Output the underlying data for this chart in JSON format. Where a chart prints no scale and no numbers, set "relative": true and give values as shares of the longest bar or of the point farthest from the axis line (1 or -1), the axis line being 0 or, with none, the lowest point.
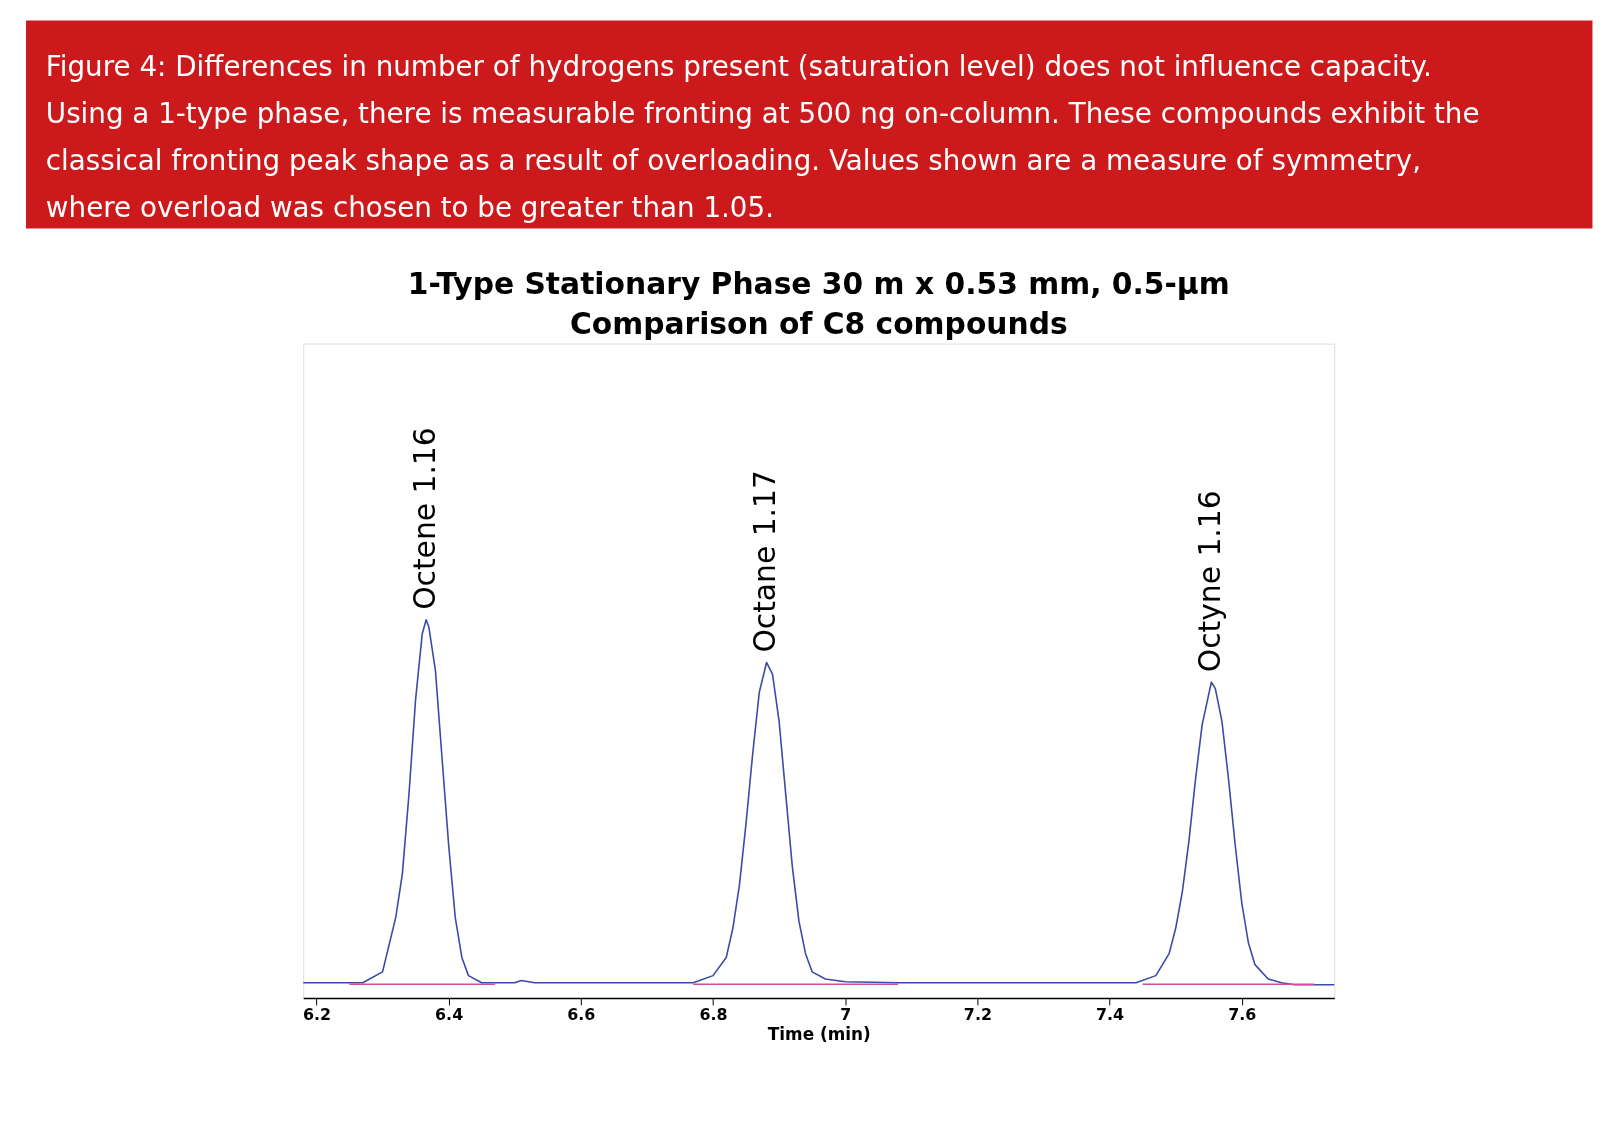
{
  "chart_data": {
    "type": "line",
    "title": "1-Type Stationary Phase 30 m x 0.53 mm, 0.5-µm",
    "subtitle": "Comparison of C8 compounds",
    "xlabel": "Time (min)",
    "relative": true,
    "xlim": [
      6.18,
      7.74
    ],
    "xticks": [
      6.2,
      6.4,
      6.6,
      6.8,
      7,
      7.2,
      7.4,
      7.6
    ],
    "grid": false,
    "marker": "none",
    "line_style": "solid",
    "series": [
      {
        "color": "#3a4aa8",
        "x": [
          6.18,
          6.27,
          6.3,
          6.32,
          6.33,
          6.34,
          6.35,
          6.36,
          6.366,
          6.37,
          6.38,
          6.39,
          6.4,
          6.41,
          6.42,
          6.43,
          6.45,
          6.5,
          6.51,
          6.53,
          6.77,
          6.8,
          6.82,
          6.83,
          6.84,
          6.85,
          6.86,
          6.87,
          6.881,
          6.89,
          6.9,
          6.91,
          6.92,
          6.93,
          6.94,
          6.95,
          6.97,
          7.0,
          7.08,
          7.44,
          7.47,
          7.49,
          7.5,
          7.51,
          7.52,
          7.53,
          7.54,
          7.554,
          7.56,
          7.57,
          7.58,
          7.59,
          7.6,
          7.61,
          7.62,
          7.64,
          7.66,
          7.68,
          7.74
        ],
        "values": [
          0.04,
          0.04,
          0.069,
          0.213,
          0.328,
          0.539,
          0.789,
          0.962,
          1,
          0.981,
          0.866,
          0.635,
          0.405,
          0.213,
          0.107,
          0.059,
          0.04,
          0.04,
          0.046,
          0.04,
          0.04,
          0.059,
          0.107,
          0.184,
          0.299,
          0.462,
          0.645,
          0.808,
          0.887,
          0.856,
          0.731,
          0.539,
          0.347,
          0.203,
          0.117,
          0.069,
          0.05,
          0.043,
          0.04,
          0.04,
          0.059,
          0.117,
          0.184,
          0.28,
          0.414,
          0.578,
          0.722,
          0.835,
          0.818,
          0.731,
          0.578,
          0.405,
          0.251,
          0.146,
          0.088,
          0.05,
          0.04,
          0.035,
          0.035
        ]
      },
      {
        "color": "#d0509a",
        "x": [
          6.25,
          6.47,
          6.48,
          6.77,
          7.08,
          7.09,
          7.45,
          7.71
        ],
        "values": [
          0.036,
          0.036,
          null,
          0.036,
          0.036,
          null,
          0.036,
          0.036
        ]
      }
    ],
    "annotations": [
      "Figure 4: Differences in number of hydrogens present (saturation level) does not influence capacity. Using a 1-type phase, there is measurable fronting at 500 ng on-column. These compounds exhibit the classical fronting peak shape as a result of overloading. Values shown are a measure of symmetry, where overload was chosen to be greater than 1.05.",
      {
        "text": "Octene 1.16",
        "x": 6.366,
        "y": 1
      },
      {
        "text": "Octane 1.17",
        "x": 6.881,
        "y": 0.887
      },
      {
        "text": "Octyne 1.16",
        "x": 7.554,
        "y": 0.835
      }
    ]
  }
}
